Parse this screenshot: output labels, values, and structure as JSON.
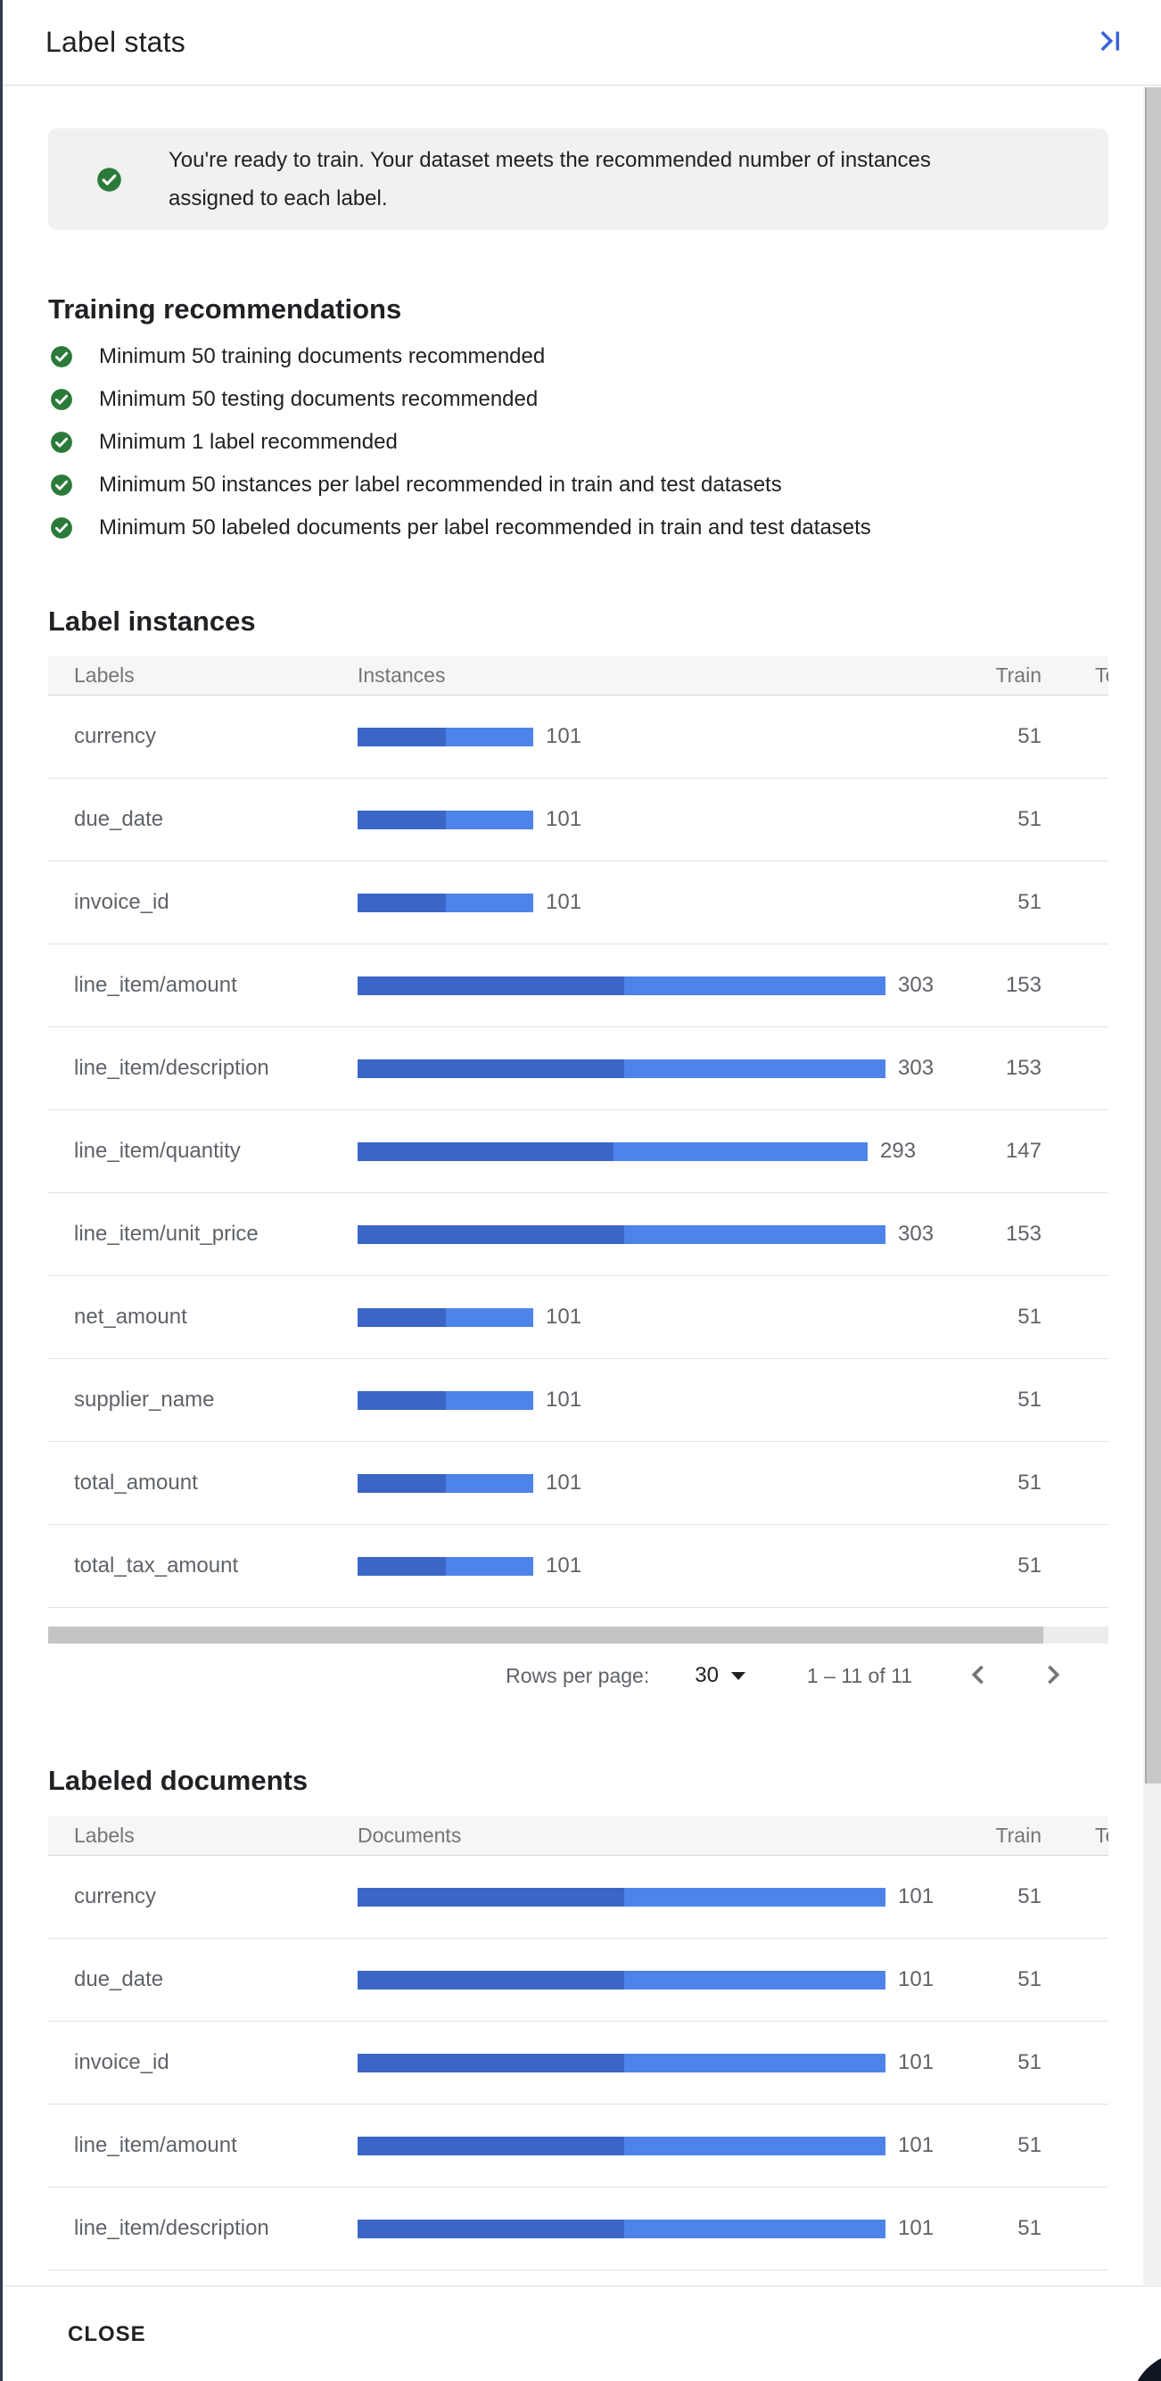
{
  "header": {
    "title": "Label stats"
  },
  "banner": {
    "text": "You're ready to train. Your dataset meets the recommended number of instances assigned to each label."
  },
  "recommendations": {
    "heading": "Training recommendations",
    "items": [
      "Minimum 50 training documents recommended",
      "Minimum 50 testing documents recommended",
      "Minimum 1 label recommended",
      "Minimum 50 instances per label recommended in train and test datasets",
      "Minimum 50 labeled documents per label recommended in train and test datasets"
    ]
  },
  "instances_table": {
    "heading": "Label instances",
    "columns": {
      "labels": "Labels",
      "metric": "Instances",
      "train": "Train",
      "test": "Test"
    },
    "rows": [
      {
        "label": "currency",
        "value": 101,
        "train": 51
      },
      {
        "label": "due_date",
        "value": 101,
        "train": 51
      },
      {
        "label": "invoice_id",
        "value": 101,
        "train": 51
      },
      {
        "label": "line_item/amount",
        "value": 303,
        "train": 153
      },
      {
        "label": "line_item/description",
        "value": 303,
        "train": 153
      },
      {
        "label": "line_item/quantity",
        "value": 293,
        "train": 147
      },
      {
        "label": "line_item/unit_price",
        "value": 303,
        "train": 153
      },
      {
        "label": "net_amount",
        "value": 101,
        "train": 51
      },
      {
        "label": "supplier_name",
        "value": 101,
        "train": 51
      },
      {
        "label": "total_amount",
        "value": 101,
        "train": 51
      },
      {
        "label": "total_tax_amount",
        "value": 101,
        "train": 51
      }
    ]
  },
  "pagination": {
    "rows_per_page_label": "Rows per page:",
    "page_size": "30",
    "range": "1 – 11 of 11"
  },
  "documents_table": {
    "heading": "Labeled documents",
    "columns": {
      "labels": "Labels",
      "metric": "Documents",
      "train": "Train",
      "test": "Test"
    },
    "rows": [
      {
        "label": "currency",
        "value": 101,
        "train": 51
      },
      {
        "label": "due_date",
        "value": 101,
        "train": 51
      },
      {
        "label": "invoice_id",
        "value": 101,
        "train": 51
      },
      {
        "label": "line_item/amount",
        "value": 101,
        "train": 51
      },
      {
        "label": "line_item/description",
        "value": 101,
        "train": 51
      }
    ]
  },
  "footer": {
    "close_label": "CLOSE"
  },
  "colors": {
    "bar_train": "#3b66c7",
    "bar_test": "#4e83ea",
    "success_green": "#2b7a39",
    "accent_blue": "#3b63d6",
    "chevron_gray": "#757575"
  }
}
